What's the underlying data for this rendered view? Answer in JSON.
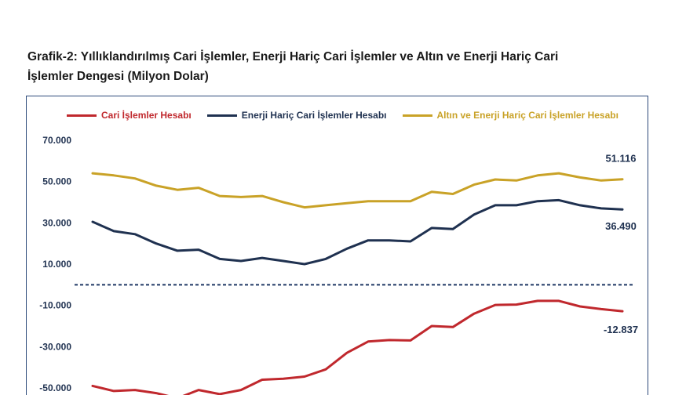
{
  "title_line1": "Grafik-2: Yıllıklandırılmış Cari İşlemler, Enerji Hariç Cari İşlemler ve Altın ve Enerji Hariç Cari",
  "title_line2": "İşlemler Dengesi (Milyon Dolar)",
  "chart_data": {
    "type": "line",
    "title": "Grafik-2: Yıllıklandırılmış Cari İşlemler, Enerji Hariç Cari İşlemler ve Altın ve Enerji Hariç Cari İşlemler Dengesi (Milyon Dolar)",
    "ylim": [
      -50000,
      70000
    ],
    "y_ticks": [
      70000,
      50000,
      30000,
      10000,
      -10000,
      -30000,
      -50000
    ],
    "y_tick_labels": [
      "70.000",
      "50.000",
      "30.000",
      "10.000",
      "-10.000",
      "-30.000",
      "-50.000"
    ],
    "zero_line": {
      "value": 0,
      "style": "dashed",
      "color": "#1f3864"
    },
    "legend_position": "top",
    "grid": false,
    "series": [
      {
        "name": "Cari İşlemler Hesabı",
        "color": "#c0282d",
        "values": [
          -49000,
          -51500,
          -51000,
          -52500,
          -55000,
          -51000,
          -53000,
          -51000,
          -46000,
          -45500,
          -44500,
          -41000,
          -33000,
          -27500,
          -26800,
          -27000,
          -20000,
          -20500,
          -14000,
          -9800,
          -9600,
          -7800,
          -7800,
          -10500,
          -11800,
          -12837
        ],
        "end_label": "-12.837"
      },
      {
        "name": "Enerji Hariç Cari İşlemler Hesabı",
        "color": "#1f3150",
        "values": [
          30500,
          26000,
          24500,
          20000,
          16500,
          17000,
          12500,
          11500,
          13000,
          11500,
          10000,
          12500,
          17500,
          21500,
          21500,
          21000,
          27500,
          27000,
          34000,
          38500,
          38500,
          40500,
          41000,
          38500,
          37000,
          36490
        ],
        "end_label": "36.490"
      },
      {
        "name": "Altın ve Enerji Hariç Cari İşlemler Hesabı",
        "color": "#c9a227",
        "values": [
          54000,
          53000,
          51500,
          48000,
          46000,
          47000,
          43000,
          42500,
          43000,
          40000,
          37500,
          38500,
          39500,
          40500,
          40500,
          40500,
          45000,
          44000,
          48500,
          51000,
          50500,
          53000,
          54000,
          52000,
          50500,
          51116
        ],
        "end_label": "51.116"
      }
    ]
  }
}
